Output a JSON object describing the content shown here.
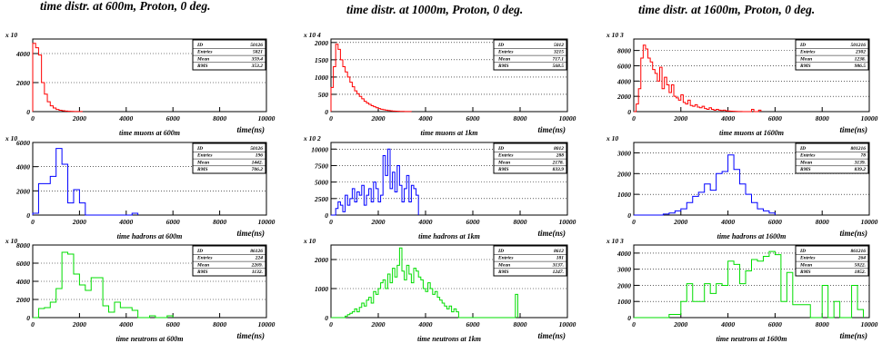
{
  "columns": [
    {
      "title": "time  distr. at 600m, Proton, 0 deg.",
      "panels": [
        {
          "scale": "x 10",
          "id": "50126",
          "entries": "5821",
          "mean": "359.4",
          "rms": "353.2",
          "xtitle": "time(ns)",
          "caption": "time muons at 600m"
        },
        {
          "scale": "x 10",
          "id": "50126",
          "entries": "196",
          "mean": "1442.",
          "rms": "706.2",
          "xtitle": "time(ns)",
          "caption": "time hadrons at 600m"
        },
        {
          "scale": "x 10",
          "id": "86126",
          "entries": "224",
          "mean": "2269.",
          "rms": "1132.",
          "xtitle": "time(ns)",
          "caption": "time neutrons at 600m"
        }
      ]
    },
    {
      "title": "time  distr. at 1000m, Proton, 0 deg.",
      "panels": [
        {
          "scale": "x 10 4",
          "id": "5012",
          "entries": "3215",
          "mean": "717.1",
          "rms": "568.5",
          "xtitle": "time(ns)",
          "caption": "time muons at 1km"
        },
        {
          "scale": "x 10 2",
          "id": "8012",
          "entries": "288",
          "mean": "2178.",
          "rms": "833.9",
          "xtitle": "time(ns)",
          "caption": "time hadrons at 1km"
        },
        {
          "scale": "x 10",
          "id": "8612",
          "entries": "181",
          "mean": "3137.",
          "rms": "1247.",
          "xtitle": "time(ns)",
          "caption": "time neutrons at 1km"
        }
      ]
    },
    {
      "title": "time  distr. at 1600m, Proton, 0 deg.",
      "panels": [
        {
          "scale": "x 10 3",
          "id": "501216",
          "entries": "2302",
          "mean": "1238.",
          "rms": "986.5",
          "xtitle": "time(ns)",
          "caption": "time muons at 1600m"
        },
        {
          "scale": "x 10",
          "id": "801216",
          "entries": "78",
          "mean": "3139.",
          "rms": "839.2",
          "xtitle": "time(ns)",
          "caption": "time hadrons at 1600m"
        },
        {
          "scale": "x 10 3",
          "id": "861216",
          "entries": "264",
          "mean": "5022.",
          "rms": "1852.",
          "xtitle": "time(ns)",
          "caption": "time neutrons at 1600m"
        }
      ]
    }
  ],
  "stats_labels": {
    "id": "ID",
    "entries": "Entries",
    "mean": "Mean",
    "rms": "RMS"
  },
  "chart_data": [
    {
      "type": "histogram",
      "color": "#ff0000",
      "xlim": [
        0,
        10000
      ],
      "ylim": [
        0,
        5000
      ],
      "yticks": [
        0,
        2000,
        4000
      ],
      "xticks": [
        0,
        2000,
        4000,
        6000,
        8000,
        10000
      ],
      "bin_width": 125,
      "values": [
        4700,
        4400,
        3900,
        2000,
        1200,
        680,
        400,
        250,
        150,
        90,
        60,
        40,
        25,
        15,
        10,
        6,
        4
      ]
    },
    {
      "type": "histogram",
      "color": "#0000ff",
      "xlim": [
        0,
        10000
      ],
      "ylim": [
        0,
        6000
      ],
      "yticks": [
        0,
        2000,
        4000,
        6000
      ],
      "xticks": [
        0,
        2000,
        4000,
        6000,
        8000,
        10000
      ],
      "bin_width": 250,
      "values": [
        150,
        2600,
        2600,
        3200,
        5500,
        4200,
        1000,
        2100,
        1000,
        0,
        0,
        0,
        0,
        0,
        0,
        0,
        0,
        150
      ]
    },
    {
      "type": "histogram",
      "color": "#00dd00",
      "xlim": [
        0,
        10000
      ],
      "ylim": [
        0,
        8000
      ],
      "yticks": [
        0,
        2000,
        4000,
        6000,
        8000
      ],
      "xticks": [
        0,
        2000,
        4000,
        6000,
        8000,
        10000
      ],
      "bin_width": 250,
      "values": [
        0,
        1000,
        1100,
        1700,
        3200,
        7200,
        7000,
        4800,
        3600,
        3000,
        4400,
        4400,
        1300,
        600,
        1700,
        1100,
        1100,
        800,
        0,
        0,
        200,
        0,
        0,
        200
      ]
    },
    {
      "type": "histogram",
      "color": "#ff0000",
      "xlim": [
        0,
        10000
      ],
      "ylim": [
        0,
        2100
      ],
      "yticks": [
        0,
        500,
        1000,
        1500,
        2000
      ],
      "xticks": [
        0,
        2000,
        4000,
        6000,
        8000,
        10000
      ],
      "bin_width": 100,
      "values": [
        700,
        1300,
        1950,
        1800,
        1500,
        1300,
        1150,
        1000,
        850,
        720,
        600,
        520,
        440,
        370,
        300,
        250,
        210,
        170,
        140,
        110,
        90,
        70,
        55,
        42,
        32,
        24,
        18,
        14,
        10,
        8,
        6,
        4,
        3,
        2
      ]
    },
    {
      "type": "histogram",
      "color": "#0000ff",
      "xlim": [
        0,
        10000
      ],
      "ylim": [
        0,
        11000
      ],
      "yticks": [
        0,
        2500,
        5000,
        7500,
        10000
      ],
      "xticks": [
        0,
        2000,
        4000,
        6000,
        8000,
        10000
      ],
      "bin_width": 100,
      "values": [
        0,
        0,
        1000,
        2000,
        1500,
        500,
        3000,
        1500,
        2500,
        4000,
        2000,
        3500,
        3000,
        4500,
        1500,
        3000,
        4000,
        2000,
        5000,
        4000,
        2000,
        3000,
        9000,
        6000,
        10000,
        4000,
        6500,
        3500,
        7500,
        4500,
        2000,
        4000,
        6000,
        2000,
        4500,
        4000,
        3000
      ]
    },
    {
      "type": "histogram",
      "color": "#00dd00",
      "xlim": [
        0,
        10000
      ],
      "ylim": [
        0,
        2500
      ],
      "yticks": [
        0,
        1000,
        2000
      ],
      "xticks": [
        0,
        2000,
        4000,
        6000,
        8000,
        10000
      ],
      "bin_width": 100,
      "values": [
        0,
        0,
        0,
        0,
        0,
        0,
        50,
        100,
        150,
        200,
        300,
        200,
        350,
        500,
        400,
        600,
        700,
        500,
        900,
        800,
        1000,
        1200,
        1300,
        1000,
        1500,
        1200,
        1700,
        1400,
        1800,
        2400,
        1600,
        1300,
        1800,
        1500,
        1200,
        1700,
        1600,
        1400,
        1300,
        1000,
        900,
        1200,
        1000,
        800,
        900,
        700,
        600,
        500,
        400,
        300,
        400,
        200,
        300,
        200,
        0,
        0,
        0,
        0,
        0,
        0,
        0,
        0,
        0,
        0,
        0,
        0,
        0,
        0,
        0,
        0,
        0,
        0,
        0,
        0,
        0,
        0,
        0,
        0,
        800
      ]
    },
    {
      "type": "histogram",
      "color": "#ff0000",
      "xlim": [
        0,
        10000
      ],
      "ylim": [
        0,
        9500
      ],
      "yticks": [
        0,
        2000,
        4000,
        6000,
        8000
      ],
      "xticks": [
        0,
        2000,
        4000,
        6000,
        8000,
        10000
      ],
      "bin_width": 100,
      "values": [
        0,
        1000,
        3000,
        7000,
        8700,
        8200,
        7000,
        6500,
        5500,
        5000,
        4000,
        5800,
        3000,
        4500,
        3500,
        2500,
        3500,
        2000,
        1800,
        1500,
        2200,
        1200,
        1000,
        1500,
        800,
        700,
        900,
        600,
        500,
        700,
        400,
        300,
        500,
        300,
        200,
        300,
        200,
        150,
        200,
        100,
        80,
        60,
        40,
        30,
        20,
        10,
        0,
        0,
        0,
        0,
        300,
        0,
        0,
        200
      ]
    },
    {
      "type": "histogram",
      "color": "#0000ff",
      "xlim": [
        0,
        10000
      ],
      "ylim": [
        0,
        3500
      ],
      "yticks": [
        0,
        1000,
        2000,
        3000
      ],
      "xticks": [
        0,
        2000,
        4000,
        6000,
        8000,
        10000
      ],
      "bin_width": 250,
      "values": [
        0,
        0,
        0,
        0,
        0,
        50,
        100,
        200,
        300,
        600,
        900,
        1100,
        1500,
        1200,
        2000,
        2100,
        2900,
        2200,
        1500,
        1000,
        600,
        300,
        200,
        100
      ]
    },
    {
      "type": "histogram",
      "color": "#00dd00",
      "xlim": [
        0,
        10000
      ],
      "ylim": [
        0,
        4500
      ],
      "yticks": [
        0,
        1000,
        2000,
        3000,
        4000
      ],
      "xticks": [
        0,
        2000,
        4000,
        6000,
        8000,
        10000
      ],
      "bin_width": 250,
      "values": [
        0,
        0,
        0,
        0,
        0,
        0,
        200,
        200,
        1000,
        2100,
        1000,
        1000,
        2100,
        1500,
        2100,
        2000,
        3500,
        3300,
        2100,
        2900,
        3600,
        3500,
        3800,
        4100,
        3900,
        1000,
        2800,
        800,
        800,
        800,
        0,
        0,
        2000,
        0,
        1000,
        0,
        0,
        2000,
        500
      ]
    }
  ]
}
